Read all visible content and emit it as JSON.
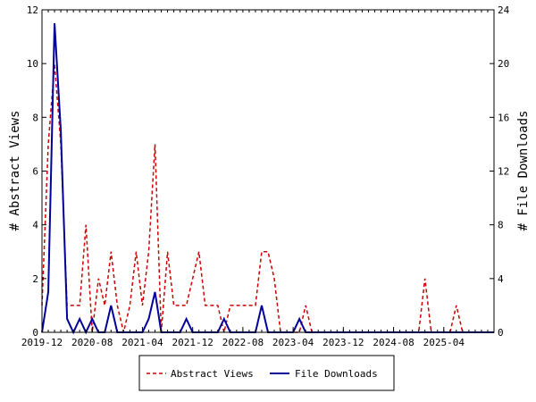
{
  "chart_data": {
    "type": "line",
    "x_labels": [
      "2019-12",
      "2020-08",
      "2021-04",
      "2021-12",
      "2022-08",
      "2023-04",
      "2023-12",
      "2024-08",
      "2025-04"
    ],
    "y_left": {
      "label": "# Abstract Views",
      "range": [
        0,
        12
      ],
      "ticks": [
        0,
        2,
        4,
        6,
        8,
        10,
        12
      ]
    },
    "y_right": {
      "label": "# File Downloads",
      "range": [
        0,
        24
      ],
      "ticks": [
        0,
        4,
        8,
        12,
        16,
        20,
        24
      ]
    },
    "series": [
      {
        "name": "Abstract Views",
        "axis": "left",
        "color": "#cc0000",
        "dash": true,
        "values": [
          1,
          7,
          10,
          7,
          1,
          1,
          1,
          4,
          0,
          2,
          1,
          3,
          1,
          0,
          1,
          3,
          1,
          3,
          7,
          0,
          3,
          1,
          1,
          1,
          2,
          3,
          1,
          1,
          1,
          0,
          1,
          1,
          1,
          1,
          1,
          3,
          3,
          2,
          0,
          0,
          0,
          0,
          1,
          0,
          0,
          0,
          0,
          0,
          0,
          0,
          0,
          0,
          0,
          0,
          0,
          0,
          0,
          0,
          0,
          0,
          0,
          2,
          0,
          0,
          0,
          0,
          1,
          0,
          0,
          0,
          0,
          0,
          0
        ]
      },
      {
        "name": "File Downloads",
        "axis": "right",
        "color": "#000099",
        "dash": false,
        "values": [
          0,
          3,
          23,
          15,
          1,
          0,
          1,
          0,
          1,
          0,
          0,
          2,
          0,
          0,
          0,
          0,
          0,
          1,
          3,
          0,
          0,
          0,
          0,
          1,
          0,
          0,
          0,
          0,
          0,
          1,
          0,
          0,
          0,
          0,
          0,
          2,
          0,
          0,
          0,
          0,
          0,
          1,
          0,
          0,
          0,
          0,
          0,
          0,
          0,
          0,
          0,
          0,
          0,
          0,
          0,
          0,
          0,
          0,
          0,
          0,
          0,
          0,
          0,
          0,
          0,
          0,
          0,
          0,
          0,
          0,
          0,
          0,
          0
        ]
      }
    ],
    "grid": false,
    "legend_position": "bottom"
  },
  "legend": {
    "items": [
      {
        "label": "Abstract Views",
        "color": "#cc0000",
        "dash": true
      },
      {
        "label": "File Downloads",
        "color": "#000099",
        "dash": false
      }
    ]
  }
}
